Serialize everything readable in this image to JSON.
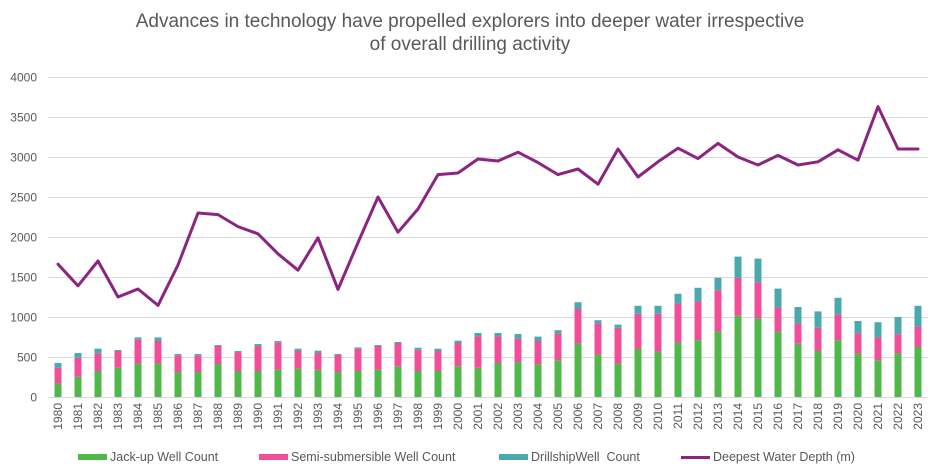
{
  "chart_data": {
    "type": "bar",
    "subtype": "stacked-bar-with-line",
    "title_lines": [
      "Advances in technology have propelled explorers into deeper water irrespective",
      "of overall drilling activity"
    ],
    "title": "Advances in technology have propelled explorers into deeper water irrespective of overall drilling activity",
    "xlabel": "",
    "ylabel": "",
    "ylim": [
      0,
      4000
    ],
    "yticks": [
      0,
      500,
      1000,
      1500,
      2000,
      2500,
      3000,
      3500,
      4000
    ],
    "grid": true,
    "legend_position": "bottom",
    "categories": [
      "1980",
      "1981",
      "1982",
      "1983",
      "1984",
      "1985",
      "1986",
      "1987",
      "1988",
      "1989",
      "1990",
      "1991",
      "1992",
      "1993",
      "1994",
      "1995",
      "1996",
      "1997",
      "1998",
      "1999",
      "2000",
      "2001",
      "2002",
      "2003",
      "2004",
      "2005",
      "2006",
      "2007",
      "2008",
      "2009",
      "2010",
      "2011",
      "2012",
      "2013",
      "2014",
      "2015",
      "2016",
      "2017",
      "2018",
      "2019",
      "2020",
      "2021",
      "2022",
      "2023"
    ],
    "series": [
      {
        "name": "Jack-up Well Count",
        "type": "stacked-bar",
        "color": "#4fb848",
        "values": [
          170,
          253,
          325,
          366,
          420,
          420,
          312,
          312,
          412,
          325,
          325,
          341,
          354,
          341,
          312,
          325,
          341,
          383,
          325,
          325,
          383,
          366,
          425,
          437,
          408,
          460,
          670,
          530,
          420,
          600,
          570,
          680,
          710,
          820,
          1015,
          980,
          820,
          665,
          575,
          710,
          545,
          460,
          545,
          625
        ]
      },
      {
        "name": "Semi-submersible Well Count",
        "type": "stacked-bar",
        "color": "#ef4f99",
        "values": [
          196,
          237,
          220,
          209,
          296,
          280,
          208,
          208,
          225,
          237,
          312,
          338,
          225,
          209,
          213,
          279,
          296,
          292,
          266,
          250,
          292,
          392,
          333,
          292,
          292,
          335,
          430,
          390,
          445,
          440,
          470,
          490,
          485,
          515,
          475,
          455,
          300,
          255,
          290,
          320,
          250,
          285,
          240,
          255
        ]
      },
      {
        "name": "DrillshipWell  Count",
        "type": "stacked-bar",
        "color": "#4aa9ae",
        "values": [
          59,
          60,
          59,
          12,
          29,
          45,
          17,
          17,
          13,
          13,
          25,
          21,
          25,
          29,
          12,
          16,
          13,
          12,
          25,
          29,
          29,
          42,
          42,
          58,
          55,
          40,
          85,
          40,
          40,
          100,
          100,
          120,
          170,
          155,
          265,
          295,
          235,
          205,
          205,
          210,
          155,
          190,
          215,
          260
        ]
      },
      {
        "name": "Deepest Water Depth (m)",
        "type": "line",
        "color": "#8b2580",
        "values": [
          1660,
          1390,
          1700,
          1250,
          1350,
          1145,
          1650,
          2300,
          2280,
          2130,
          2040,
          1790,
          1585,
          1990,
          1345,
          1930,
          2500,
          2060,
          2350,
          2780,
          2800,
          2975,
          2950,
          3060,
          2930,
          2780,
          2850,
          2660,
          3100,
          2750,
          2940,
          3110,
          2980,
          3170,
          3000,
          2900,
          3020,
          2900,
          2940,
          3090,
          2960,
          3630,
          3100,
          3100
        ]
      }
    ]
  }
}
